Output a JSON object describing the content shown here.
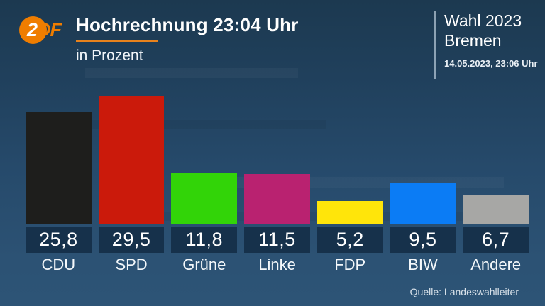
{
  "brand": {
    "name": "ZDF",
    "logo_circle_char": "2",
    "logo_rest": "DF"
  },
  "header": {
    "title": "Hochrechnung 23:04 Uhr",
    "subtitle": "in Prozent"
  },
  "info_panel": {
    "line1": "Wahl 2023",
    "line2": "Bremen",
    "timestamp": "14.05.2023, 23:06 Uhr"
  },
  "source": "Quelle: Landeswahlleiter",
  "colors": {
    "accent_orange": "#e8821c",
    "logo_orange": "#ef7d00",
    "value_badge_bg": "#16314b",
    "background_top": "#1c3950",
    "background_bottom": "#2d5476"
  },
  "chart_data": {
    "type": "bar",
    "title": "Hochrechnung 23:04 Uhr",
    "subtitle": "in Prozent",
    "region": "Bremen",
    "election": "Wahl 2023",
    "categories": [
      "CDU",
      "SPD",
      "Grüne",
      "Linke",
      "FDP",
      "BIW",
      "Andere"
    ],
    "values": [
      25.8,
      29.5,
      11.8,
      11.5,
      5.2,
      9.5,
      6.7
    ],
    "value_labels": [
      "25,8",
      "29,5",
      "11,8",
      "11,5",
      "5,2",
      "9,5",
      "6,7"
    ],
    "bar_colors": [
      "#1e1e1c",
      "#cb1a0b",
      "#32d408",
      "#b92270",
      "#ffe50a",
      "#0b7cf5",
      "#a7a7a5"
    ],
    "unit": "Prozent",
    "ylim": [
      0,
      32
    ],
    "grid": false,
    "legend": false,
    "source": "Quelle: Landeswahlleiter"
  }
}
